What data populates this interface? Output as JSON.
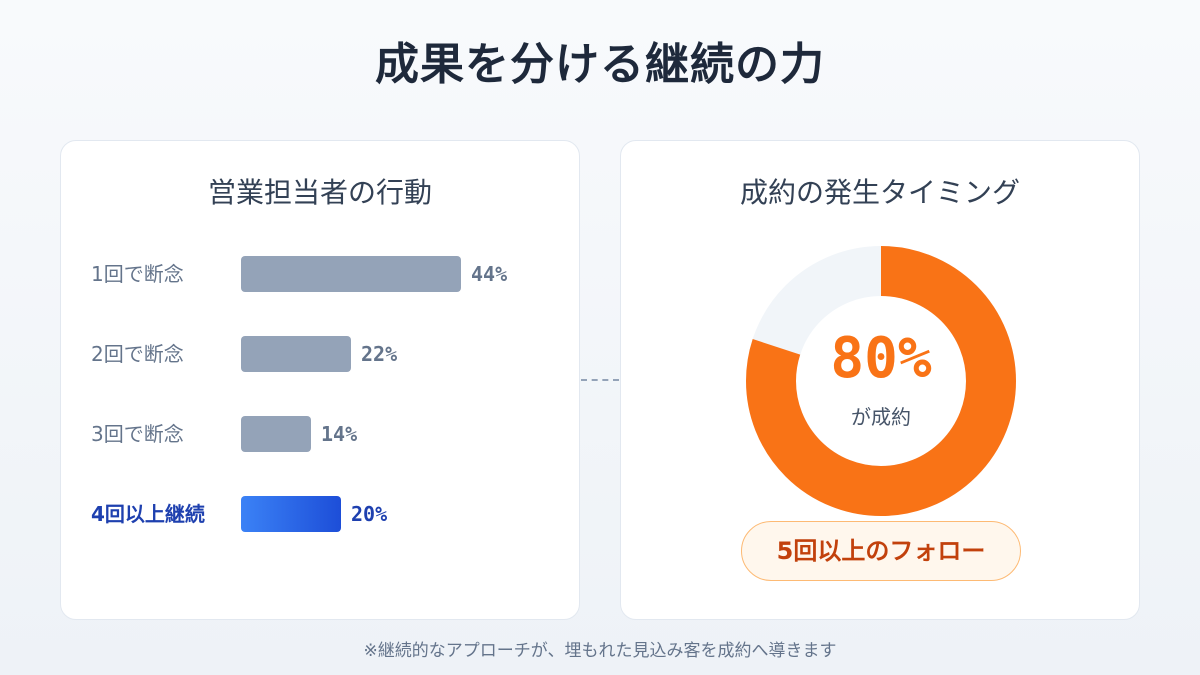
{
  "title": "成果を分ける継続の力",
  "left_card": {
    "title": "営業担当者の行動"
  },
  "right_card": {
    "title": "成約の発生タイミング",
    "center_value": "80%",
    "center_sub": "が成約",
    "pill": "5回以上のフォロー"
  },
  "footnote": "※継続的なアプローチが、埋もれた見込み客を成約へ導きます",
  "colors": {
    "bar_default": "#94a3b8",
    "bar_highlight": "#2563eb",
    "donut_accent": "#f97316",
    "donut_track": "#f1f5f9"
  },
  "chart_data": [
    {
      "type": "bar",
      "orientation": "horizontal",
      "categories": [
        "1回で断念",
        "2回で断念",
        "3回で断念",
        "4回以上継続"
      ],
      "values": [
        44,
        22,
        14,
        20
      ],
      "value_labels": [
        "44%",
        "22%",
        "14%",
        "20%"
      ],
      "highlight_index": 3,
      "xlim": [
        0,
        100
      ],
      "title": "営業担当者の行動"
    },
    {
      "type": "pie",
      "donut": true,
      "categories": [
        "5回以上のフォロー",
        ""
      ],
      "values": [
        80,
        20
      ],
      "title": "成約の発生タイミング"
    }
  ]
}
